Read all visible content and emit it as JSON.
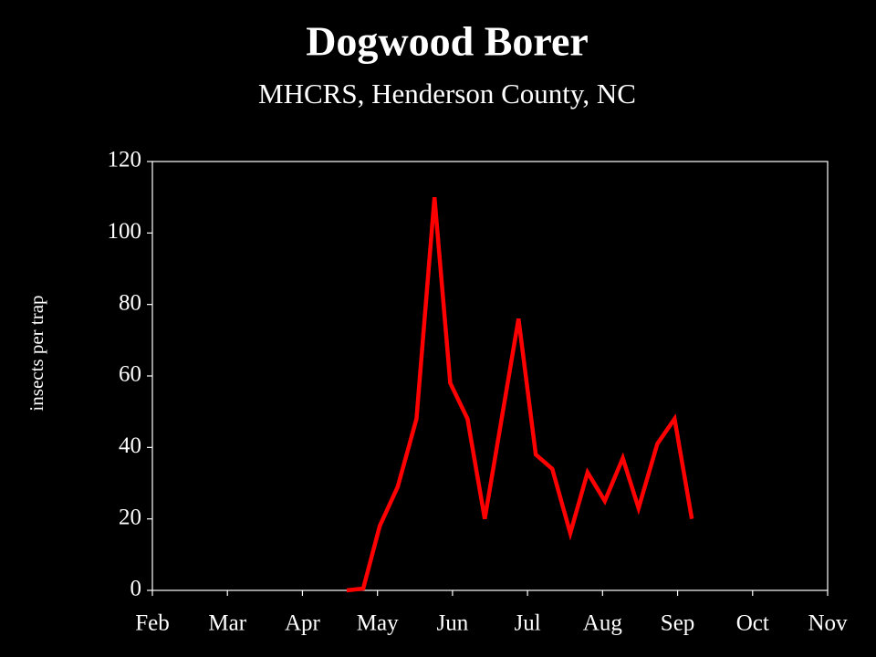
{
  "chart_data": {
    "type": "line",
    "title": "Dogwood Borer",
    "subtitle": "MHCRS, Henderson County, NC",
    "y_label": "insects per trap",
    "x": [
      2.59,
      2.81,
      3.03,
      3.27,
      3.52,
      3.76,
      3.97,
      4.2,
      4.43,
      4.88,
      5.11,
      5.33,
      5.57,
      5.8,
      6.03,
      6.27,
      6.48,
      6.73,
      6.96,
      7.19
    ],
    "series": [
      {
        "color": "#ff0000",
        "values": [
          0,
          0.5,
          18,
          29,
          48,
          110,
          58,
          48,
          20,
          76,
          38,
          34,
          16,
          33,
          25,
          37,
          23,
          41,
          48,
          20
        ]
      }
    ],
    "xlim": [
      0,
      9
    ],
    "xticks": [
      {
        "value": 0,
        "label": "Feb"
      },
      {
        "value": 1,
        "label": "Mar"
      },
      {
        "value": 2,
        "label": "Apr"
      },
      {
        "value": 3,
        "label": "May"
      },
      {
        "value": 4,
        "label": "Jun"
      },
      {
        "value": 5,
        "label": "Jul"
      },
      {
        "value": 6,
        "label": "Aug"
      },
      {
        "value": 7,
        "label": "Sep"
      },
      {
        "value": 8,
        "label": "Oct"
      },
      {
        "value": 9,
        "label": "Nov"
      }
    ],
    "ylim": [
      0,
      120
    ],
    "yticks": [
      0,
      20,
      40,
      60,
      80,
      100,
      120
    ]
  }
}
